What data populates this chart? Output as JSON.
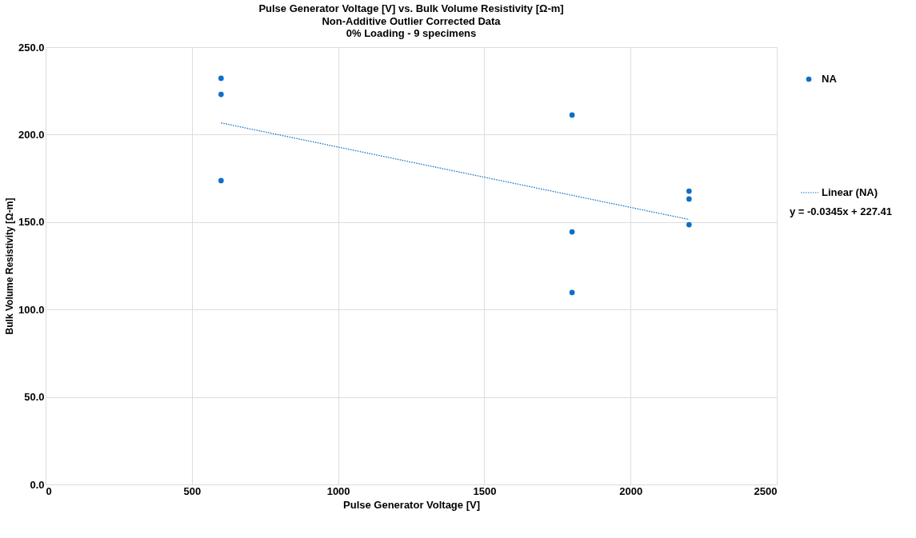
{
  "chart_data": {
    "type": "scatter",
    "title": "Pulse Generator Voltage [V] vs. Bulk Volume Resistivity [Ω-m]",
    "subtitle": "Non-Additive Outlier Corrected Data\n0% Loading -  9 specimens",
    "xlabel": "Pulse Generator Voltage [V]",
    "ylabel": "Bulk Volume Resistivity [Ω-m]",
    "series": [
      {
        "name": "NA",
        "color": "#0f6fc6",
        "marker": "circle",
        "x": [
          600,
          600,
          600,
          1800,
          1800,
          1800,
          2200,
          2200,
          2200
        ],
        "values": [
          232.2,
          223.0,
          173.7,
          211.2,
          144.4,
          109.7,
          167.7,
          163.2,
          148.5
        ]
      },
      {
        "name": "Linear (NA)",
        "color": "#0f6fc6",
        "type": "line",
        "line_style": "dotted",
        "marker": "none",
        "x": [
          600,
          2200
        ],
        "values": [
          206.7,
          151.5
        ]
      }
    ],
    "annotations": [
      "y = -0.0345x + 227.41"
    ],
    "xlim": [
      0,
      2500
    ],
    "xticks": [
      0,
      500,
      1000,
      1500,
      2000,
      2500
    ],
    "ylim": [
      0,
      250
    ],
    "yticks": [
      {
        "value": 0,
        "label": "0.0"
      },
      {
        "value": 50,
        "label": "50.0"
      },
      {
        "value": 100,
        "label": "100.0"
      },
      {
        "value": 150,
        "label": "150.0"
      },
      {
        "value": 200,
        "label": "200.0"
      },
      {
        "value": 250,
        "label": "250.0"
      }
    ],
    "grid": true,
    "legend": "right"
  }
}
